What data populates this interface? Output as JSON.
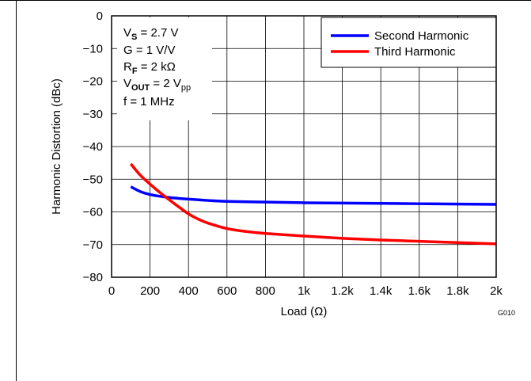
{
  "chart_data": {
    "type": "line",
    "xlabel": "Load (Ω)",
    "ylabel": "Harmonic Distortion (dBc)",
    "xlim": [
      0,
      2000
    ],
    "ylim": [
      -80,
      0
    ],
    "x_ticks": [
      0,
      200,
      400,
      600,
      800,
      1000,
      1200,
      1400,
      1600,
      1800,
      2000
    ],
    "x_tick_labels": [
      "0",
      "200",
      "400",
      "600",
      "800",
      "1k",
      "1.2k",
      "1.4k",
      "1.6k",
      "1.8k",
      "2k"
    ],
    "y_ticks": [
      0,
      -10,
      -20,
      -30,
      -40,
      -50,
      -60,
      -70,
      -80
    ],
    "y_tick_labels": [
      "0",
      "−10",
      "−20",
      "−30",
      "−40",
      "−50",
      "−60",
      "−70",
      "−80"
    ],
    "grid": true,
    "legend_position": "top-right",
    "conditions": {
      "vs": {
        "base": "V",
        "sub": "S",
        "value": " = 2.7 V"
      },
      "gain": "G = 1 V/V",
      "rf": {
        "base": "R",
        "sub": "F",
        "value": " = 2 kΩ"
      },
      "vout": {
        "base": "V",
        "sub": "OUT",
        "value": " = 2 V",
        "value_sub": "pp"
      },
      "freq": "f = 1 MHz"
    },
    "figure_id": "G010",
    "series": [
      {
        "name": "Second Harmonic",
        "color": "#0000ff",
        "x": [
          100,
          150,
          200,
          250,
          300,
          400,
          500,
          600,
          800,
          1000,
          1200,
          1400,
          1600,
          1800,
          2000
        ],
        "y": [
          -52.3,
          -53.8,
          -54.7,
          -55.2,
          -55.6,
          -56.1,
          -56.5,
          -56.8,
          -57.0,
          -57.2,
          -57.3,
          -57.4,
          -57.5,
          -57.6,
          -57.7
        ]
      },
      {
        "name": "Third Harmonic",
        "color": "#ff0000",
        "x": [
          100,
          150,
          200,
          250,
          300,
          350,
          400,
          450,
          500,
          600,
          700,
          800,
          1000,
          1200,
          1400,
          1600,
          1800,
          2000
        ],
        "y": [
          -45.3,
          -48.8,
          -51.5,
          -54.0,
          -56.3,
          -58.5,
          -60.6,
          -62.2,
          -63.4,
          -65.1,
          -66.0,
          -66.6,
          -67.4,
          -68.1,
          -68.6,
          -69.0,
          -69.4,
          -69.8
        ]
      }
    ]
  }
}
